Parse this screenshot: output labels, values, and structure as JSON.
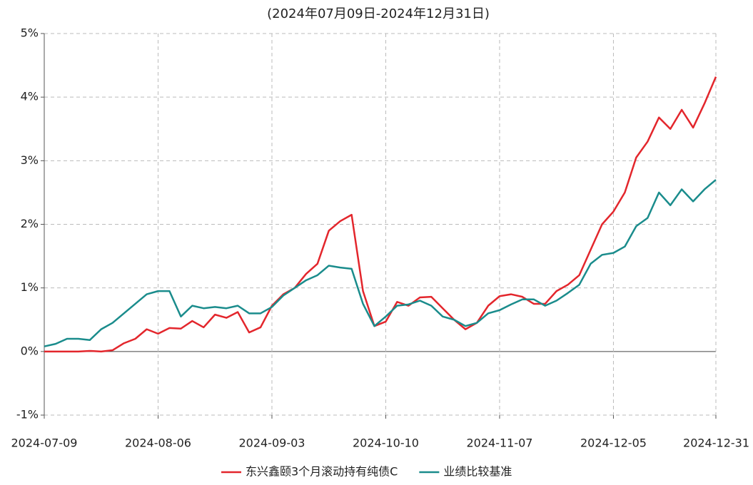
{
  "chart_data": {
    "type": "line",
    "title": "(2024年07月09日-2024年12月31日)",
    "categories": [
      "2024-07-09",
      null,
      null,
      null,
      null,
      null,
      null,
      null,
      null,
      null,
      "2024-08-06",
      null,
      null,
      null,
      null,
      null,
      null,
      null,
      null,
      null,
      "2024-09-03",
      null,
      null,
      null,
      null,
      null,
      null,
      null,
      null,
      null,
      "2024-10-10",
      null,
      null,
      null,
      null,
      null,
      null,
      null,
      null,
      null,
      "2024-11-07",
      null,
      null,
      null,
      null,
      null,
      null,
      null,
      null,
      null,
      "2024-12-05",
      null,
      null,
      null,
      null,
      null,
      null,
      null,
      null,
      "2024-12-31"
    ],
    "series": [
      {
        "name": "东兴鑫颐3个月滚动持有纯债C",
        "color": "#e3262c",
        "values": [
          0,
          0,
          0,
          0,
          0.01,
          0,
          0.02,
          0.13,
          0.2,
          0.35,
          0.28,
          0.37,
          0.36,
          0.48,
          0.38,
          0.58,
          0.53,
          0.62,
          0.3,
          0.38,
          0.72,
          0.9,
          1.0,
          1.22,
          1.38,
          1.9,
          2.05,
          2.15,
          0.95,
          0.4,
          0.47,
          0.78,
          0.72,
          0.85,
          0.86,
          0.68,
          0.5,
          0.35,
          0.45,
          0.72,
          0.87,
          0.9,
          0.86,
          0.75,
          0.75,
          0.95,
          1.05,
          1.2,
          1.6,
          2.0,
          2.2,
          2.5,
          3.05,
          3.3,
          3.68,
          3.5,
          3.8,
          3.52,
          3.9,
          4.32
        ]
      },
      {
        "name": "业绩比较基准",
        "color": "#1a8c8c",
        "values": [
          0.08,
          0.12,
          0.2,
          0.2,
          0.18,
          0.35,
          0.45,
          0.6,
          0.75,
          0.9,
          0.95,
          0.95,
          0.55,
          0.72,
          0.68,
          0.7,
          0.68,
          0.72,
          0.6,
          0.6,
          0.7,
          0.88,
          1.0,
          1.12,
          1.2,
          1.35,
          1.32,
          1.3,
          0.75,
          0.4,
          0.55,
          0.72,
          0.74,
          0.8,
          0.72,
          0.55,
          0.5,
          0.4,
          0.45,
          0.6,
          0.65,
          0.74,
          0.82,
          0.82,
          0.72,
          0.8,
          0.92,
          1.05,
          1.38,
          1.52,
          1.55,
          1.65,
          1.97,
          2.1,
          2.5,
          2.3,
          2.55,
          2.36,
          2.55,
          2.7
        ]
      }
    ],
    "ylim": [
      -1,
      5
    ],
    "yticks": [
      {
        "value": -1,
        "label": "-1%"
      },
      {
        "value": 0,
        "label": "0%"
      },
      {
        "value": 1,
        "label": "1%"
      },
      {
        "value": 2,
        "label": "2%"
      },
      {
        "value": 3,
        "label": "3%"
      },
      {
        "value": 4,
        "label": "4%"
      },
      {
        "value": 5,
        "label": "5%"
      }
    ],
    "grid": true,
    "legend": "bottom"
  }
}
